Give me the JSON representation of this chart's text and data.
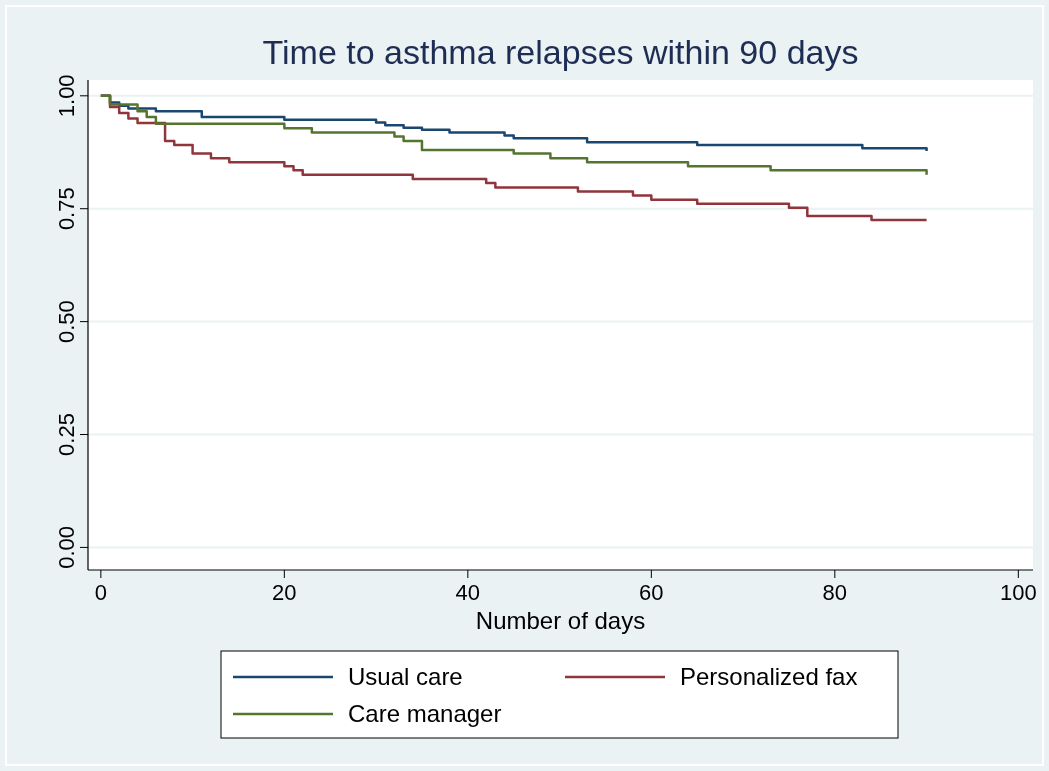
{
  "chart_data": {
    "type": "step",
    "title": "Time to asthma relapses within 90 days",
    "xlabel": "Number of days",
    "x": [
      0,
      1,
      2,
      3,
      4,
      5,
      6,
      7,
      8,
      10,
      11,
      12,
      14,
      20,
      21,
      22,
      23,
      30,
      31,
      32,
      33,
      34,
      35,
      38,
      42,
      43,
      44,
      45,
      49,
      52,
      53,
      58,
      60,
      64,
      65,
      73,
      75,
      77,
      83,
      84,
      90
    ],
    "series": [
      {
        "name": "Usual care",
        "color": "#1a476f",
        "values": [
          1,
          0.985,
          0.978,
          0.972,
          0.972,
          0.972,
          0.966,
          0.966,
          0.966,
          0.966,
          0.953,
          0.953,
          0.953,
          0.947,
          0.947,
          0.947,
          0.947,
          0.941,
          0.935,
          0.935,
          0.929,
          0.929,
          0.925,
          0.919,
          0.919,
          0.919,
          0.912,
          0.906,
          0.906,
          0.906,
          0.897,
          0.897,
          0.897,
          0.897,
          0.891,
          0.891,
          0.891,
          0.891,
          0.884,
          0.884,
          0.878
        ]
      },
      {
        "name": "Personalized fax",
        "color": "#90353b",
        "values": [
          1,
          0.975,
          0.962,
          0.95,
          0.94,
          0.94,
          0.94,
          0.9,
          0.891,
          0.872,
          0.872,
          0.862,
          0.853,
          0.844,
          0.835,
          0.825,
          0.825,
          0.825,
          0.825,
          0.825,
          0.825,
          0.816,
          0.816,
          0.816,
          0.807,
          0.797,
          0.797,
          0.797,
          0.797,
          0.788,
          0.788,
          0.779,
          0.77,
          0.77,
          0.761,
          0.761,
          0.752,
          0.734,
          0.734,
          0.725,
          0.725
        ]
      },
      {
        "name": "Care manager",
        "color": "#55752f",
        "values": [
          1,
          0.981,
          0.981,
          0.981,
          0.966,
          0.953,
          0.938,
          0.938,
          0.938,
          0.938,
          0.938,
          0.938,
          0.938,
          0.928,
          0.928,
          0.928,
          0.919,
          0.919,
          0.919,
          0.91,
          0.9,
          0.9,
          0.88,
          0.88,
          0.88,
          0.88,
          0.88,
          0.872,
          0.862,
          0.862,
          0.853,
          0.853,
          0.853,
          0.844,
          0.844,
          0.835,
          0.835,
          0.835,
          0.835,
          0.835,
          0.825
        ]
      }
    ],
    "xlim": [
      -1.4,
      101.6
    ],
    "xticks": [
      0,
      20,
      40,
      60,
      80,
      100
    ],
    "ylim": [
      -0.05,
      1.035
    ],
    "yticks": [
      {
        "value": 0,
        "label": "0.00"
      },
      {
        "value": 0.25,
        "label": "0.25"
      },
      {
        "value": 0.5,
        "label": "0.50"
      },
      {
        "value": 0.75,
        "label": "0.75"
      },
      {
        "value": 1,
        "label": "1.00"
      }
    ],
    "grid": "y",
    "legend": "bottom"
  }
}
